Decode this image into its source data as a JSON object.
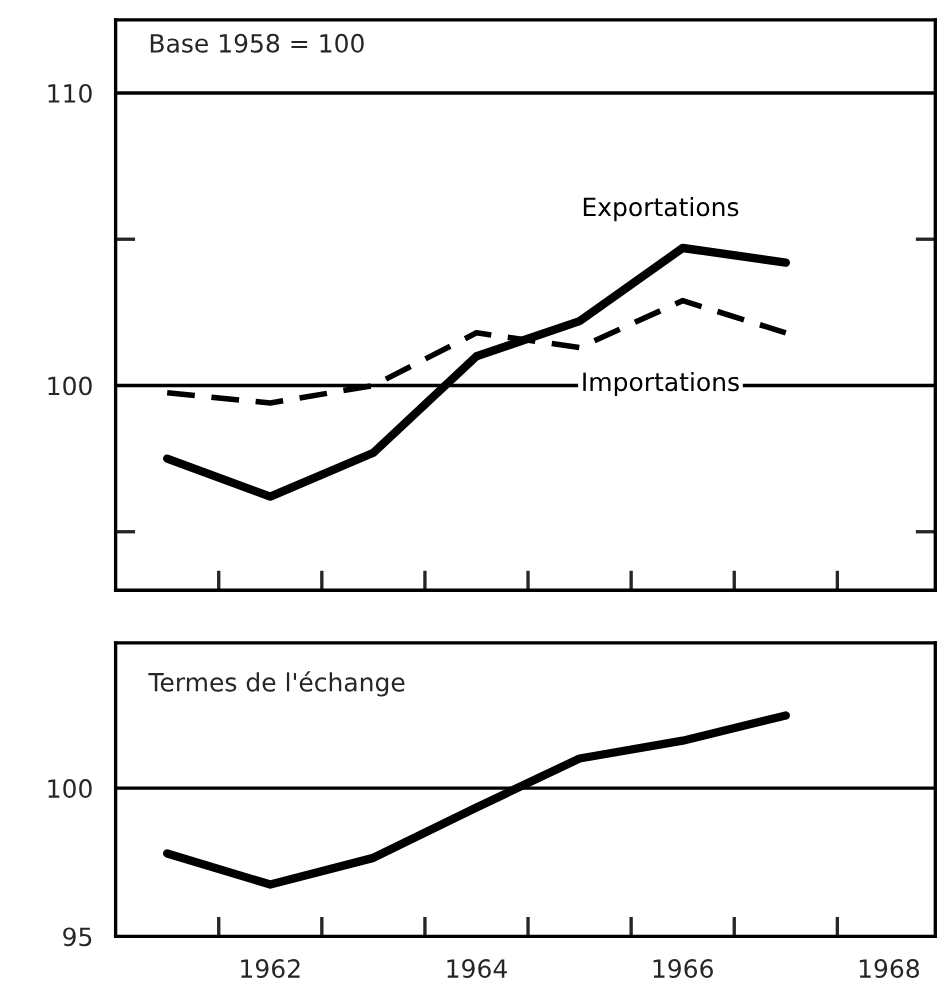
{
  "chart_data": [
    {
      "type": "line",
      "annotations": [
        "Base 1958 = 100"
      ],
      "x": [
        1961,
        1962,
        1963,
        1964,
        1965,
        1966,
        1967
      ],
      "series": [
        {
          "name": "Exportations",
          "color": "#000000",
          "line_style": "solid",
          "values": [
            97.5,
            96.2,
            97.7,
            101.0,
            102.2,
            104.7,
            104.2
          ]
        },
        {
          "name": "Importations",
          "color": "#000000",
          "line_style": "dashed",
          "values": [
            99.75,
            99.4,
            100.0,
            101.8,
            101.3,
            102.9,
            101.8
          ]
        }
      ],
      "xlim": [
        1960.5,
        1968.45
      ],
      "xticks": [
        {
          "value": 1961.5,
          "label": null
        },
        {
          "value": 1962.5,
          "label": null
        },
        {
          "value": 1963.5,
          "label": null
        },
        {
          "value": 1964.5,
          "label": null
        },
        {
          "value": 1965.5,
          "label": null
        },
        {
          "value": 1966.5,
          "label": null
        },
        {
          "value": 1967.5,
          "label": null
        }
      ],
      "ylim": [
        93,
        112.5
      ],
      "yticks": [
        {
          "value": 95,
          "label": null
        },
        100,
        {
          "value": 105,
          "label": null
        },
        110
      ],
      "ref_lines": [
        {
          "axis": "y",
          "value": 110,
          "color": "#000000"
        },
        {
          "axis": "y",
          "value": 100,
          "color": "#000000"
        }
      ],
      "tick_labels": "y",
      "grid": false,
      "legend": false
    },
    {
      "type": "line",
      "title": "Termes de l'échange",
      "x": [
        1961,
        1962,
        1963,
        1964,
        1965,
        1966,
        1967
      ],
      "series": [
        {
          "color": "#000000",
          "line_style": "solid",
          "values": [
            97.8,
            96.75,
            97.65,
            99.35,
            101.0,
            101.6,
            102.45
          ]
        }
      ],
      "xlim": [
        1960.5,
        1968.45
      ],
      "xticks": [
        {
          "value": 1961.5,
          "label": null
        },
        {
          "value": 1962,
          "label": "1962"
        },
        {
          "value": 1962.5,
          "label": null
        },
        {
          "value": 1963.5,
          "label": null
        },
        {
          "value": 1964,
          "label": "1964"
        },
        {
          "value": 1964.5,
          "label": null
        },
        {
          "value": 1965.5,
          "label": null
        },
        {
          "value": 1966,
          "label": "1966"
        },
        {
          "value": 1966.5,
          "label": null
        },
        {
          "value": 1967.5,
          "label": null
        },
        {
          "value": 1968,
          "label": "1968"
        }
      ],
      "ylim": [
        95,
        104.9
      ],
      "yticks": [
        95,
        100
      ],
      "ref_lines": [
        {
          "axis": "y",
          "value": 100,
          "color": "#000000"
        }
      ],
      "grid": false,
      "legend": false
    }
  ]
}
